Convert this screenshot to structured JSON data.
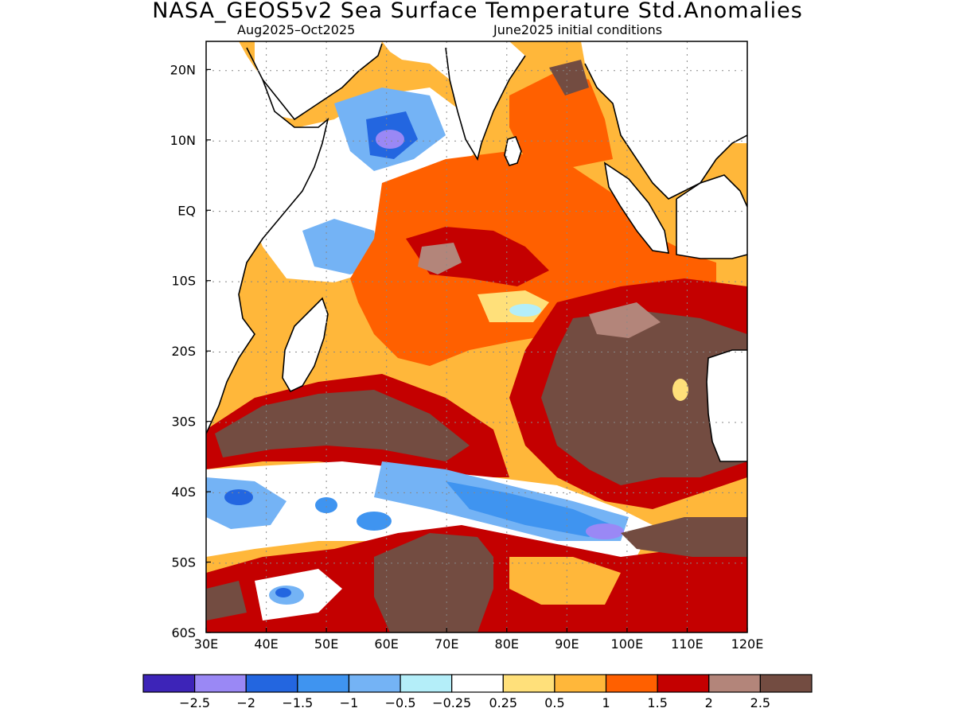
{
  "title": "NASA_GEOS5v2 Sea Surface Temperature Std.Anomalies",
  "subtitle_period": "Aug2025–Oct2025",
  "subtitle_init": "June2025 initial conditions",
  "map": {
    "lon_range": [
      30,
      120
    ],
    "lat_range": [
      -60,
      24
    ],
    "lon_ticks": [
      {
        "value": 30,
        "label": "30E"
      },
      {
        "value": 40,
        "label": "40E"
      },
      {
        "value": 50,
        "label": "50E"
      },
      {
        "value": 60,
        "label": "60E"
      },
      {
        "value": 70,
        "label": "70E"
      },
      {
        "value": 80,
        "label": "80E"
      },
      {
        "value": 90,
        "label": "90E"
      },
      {
        "value": 100,
        "label": "100E"
      },
      {
        "value": 110,
        "label": "110E"
      },
      {
        "value": 120,
        "label": "120E"
      }
    ],
    "lat_ticks": [
      {
        "value": 20,
        "label": "20N"
      },
      {
        "value": 10,
        "label": "10N"
      },
      {
        "value": 0,
        "label": "EQ"
      },
      {
        "value": -10,
        "label": "10S"
      },
      {
        "value": -20,
        "label": "20S"
      },
      {
        "value": -30,
        "label": "30S"
      },
      {
        "value": -40,
        "label": "40S"
      },
      {
        "value": -50,
        "label": "50S"
      },
      {
        "value": -60,
        "label": "60S"
      }
    ],
    "gridlines": "dotted"
  },
  "colorbar": {
    "colors": [
      "#3d24b8",
      "#9a88f5",
      "#2366e0",
      "#3f94f0",
      "#74b3f5",
      "#b4eef9",
      "#ffffff",
      "#ffe07a",
      "#ffb73a",
      "#ff6000",
      "#c40000",
      "#b3857a",
      "#734c41"
    ],
    "labels": [
      "−2.5",
      "−2",
      "−1.5",
      "−1",
      "−0.5",
      "−0.25",
      "0.25",
      "0.5",
      "1",
      "1.5",
      "2",
      "2.5"
    ]
  }
}
